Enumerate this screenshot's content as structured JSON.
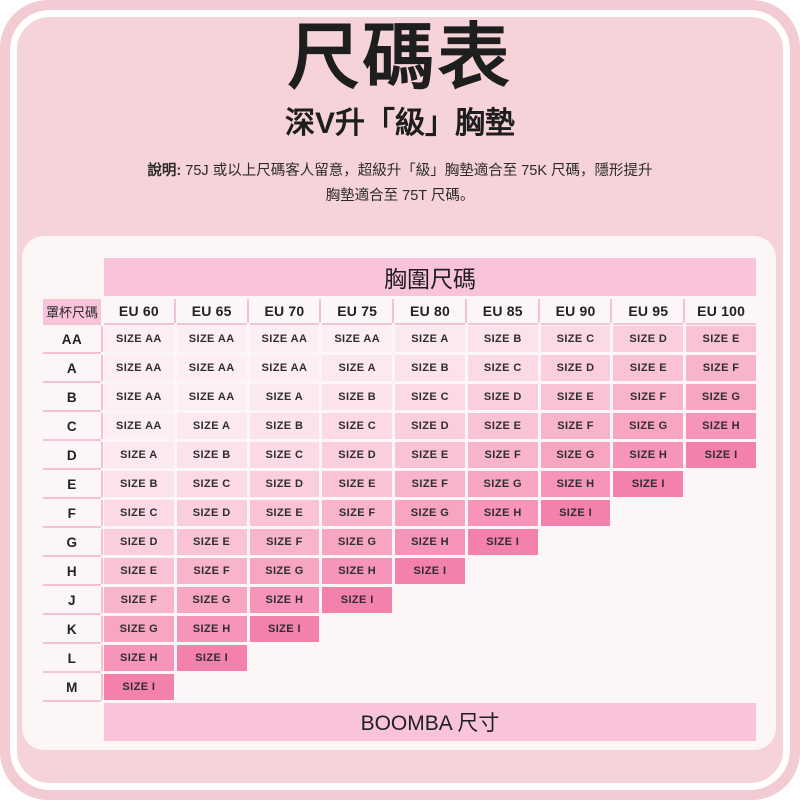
{
  "page": {
    "title": "尺碼表",
    "subtitle": "深V升「級」胸墊",
    "note_label": "說明:",
    "note_line1": "75J 或以上尺碼客人留意，超級升「級」胸墊適合至 75K 尺碼，隱形提升",
    "note_line2": "胸墊適合至 75T 尺碼。"
  },
  "chart_data": {
    "type": "table",
    "title": "尺碼表 深V升「級」胸墊",
    "band_header": "胸圍尺碼",
    "cup_header": "罩杯尺碼",
    "columns": [
      "EU 60",
      "EU 65",
      "EU 70",
      "EU 75",
      "EU 80",
      "EU 85",
      "EU 90",
      "EU 95",
      "EU 100"
    ],
    "rows": [
      {
        "cup": "AA",
        "values": [
          "SIZE AA",
          "SIZE AA",
          "SIZE AA",
          "SIZE AA",
          "SIZE A",
          "SIZE B",
          "SIZE C",
          "SIZE D",
          "SIZE E"
        ]
      },
      {
        "cup": "A",
        "values": [
          "SIZE AA",
          "SIZE AA",
          "SIZE AA",
          "SIZE A",
          "SIZE B",
          "SIZE C",
          "SIZE D",
          "SIZE E",
          "SIZE F"
        ]
      },
      {
        "cup": "B",
        "values": [
          "SIZE AA",
          "SIZE AA",
          "SIZE A",
          "SIZE B",
          "SIZE C",
          "SIZE D",
          "SIZE E",
          "SIZE F",
          "SIZE G"
        ]
      },
      {
        "cup": "C",
        "values": [
          "SIZE AA",
          "SIZE A",
          "SIZE B",
          "SIZE C",
          "SIZE D",
          "SIZE E",
          "SIZE F",
          "SIZE G",
          "SIZE H"
        ]
      },
      {
        "cup": "D",
        "values": [
          "SIZE A",
          "SIZE B",
          "SIZE C",
          "SIZE D",
          "SIZE E",
          "SIZE F",
          "SIZE G",
          "SIZE H",
          "SIZE I"
        ]
      },
      {
        "cup": "E",
        "values": [
          "SIZE B",
          "SIZE C",
          "SIZE D",
          "SIZE E",
          "SIZE F",
          "SIZE G",
          "SIZE H",
          "SIZE I",
          ""
        ]
      },
      {
        "cup": "F",
        "values": [
          "SIZE C",
          "SIZE D",
          "SIZE E",
          "SIZE F",
          "SIZE G",
          "SIZE H",
          "SIZE I",
          "",
          ""
        ]
      },
      {
        "cup": "G",
        "values": [
          "SIZE D",
          "SIZE E",
          "SIZE F",
          "SIZE G",
          "SIZE H",
          "SIZE I",
          "",
          "",
          ""
        ]
      },
      {
        "cup": "H",
        "values": [
          "SIZE E",
          "SIZE F",
          "SIZE G",
          "SIZE H",
          "SIZE I",
          "",
          "",
          "",
          ""
        ]
      },
      {
        "cup": "J",
        "values": [
          "SIZE F",
          "SIZE G",
          "SIZE H",
          "SIZE I",
          "",
          "",
          "",
          "",
          ""
        ]
      },
      {
        "cup": "K",
        "values": [
          "SIZE G",
          "SIZE H",
          "SIZE I",
          "",
          "",
          "",
          "",
          "",
          ""
        ]
      },
      {
        "cup": "L",
        "values": [
          "SIZE H",
          "SIZE I",
          "",
          "",
          "",
          "",
          "",
          "",
          ""
        ]
      },
      {
        "cup": "M",
        "values": [
          "SIZE I",
          "",
          "",
          "",
          "",
          "",
          "",
          "",
          ""
        ]
      }
    ],
    "footer": "BOOMBA 尺寸"
  },
  "colors": {
    "page_outer": "#f3ccd3",
    "page_inner": "#f6d3d9",
    "frame_stroke": "#ffffff",
    "card_bg": "#fdf6f7",
    "header_pink": "#f9c4da",
    "separator_line": "#f3c3d3",
    "size_shades": {
      "SIZE AA": "#fdeef4",
      "SIZE A": "#fce9f0",
      "SIZE B": "#fce2ec",
      "SIZE C": "#fbd9e6",
      "SIZE D": "#facede",
      "SIZE E": "#f9c2d7",
      "SIZE F": "#f8b3cd",
      "SIZE G": "#f7a5c3",
      "SIZE H": "#f694b9",
      "SIZE I": "#f481ac"
    }
  }
}
